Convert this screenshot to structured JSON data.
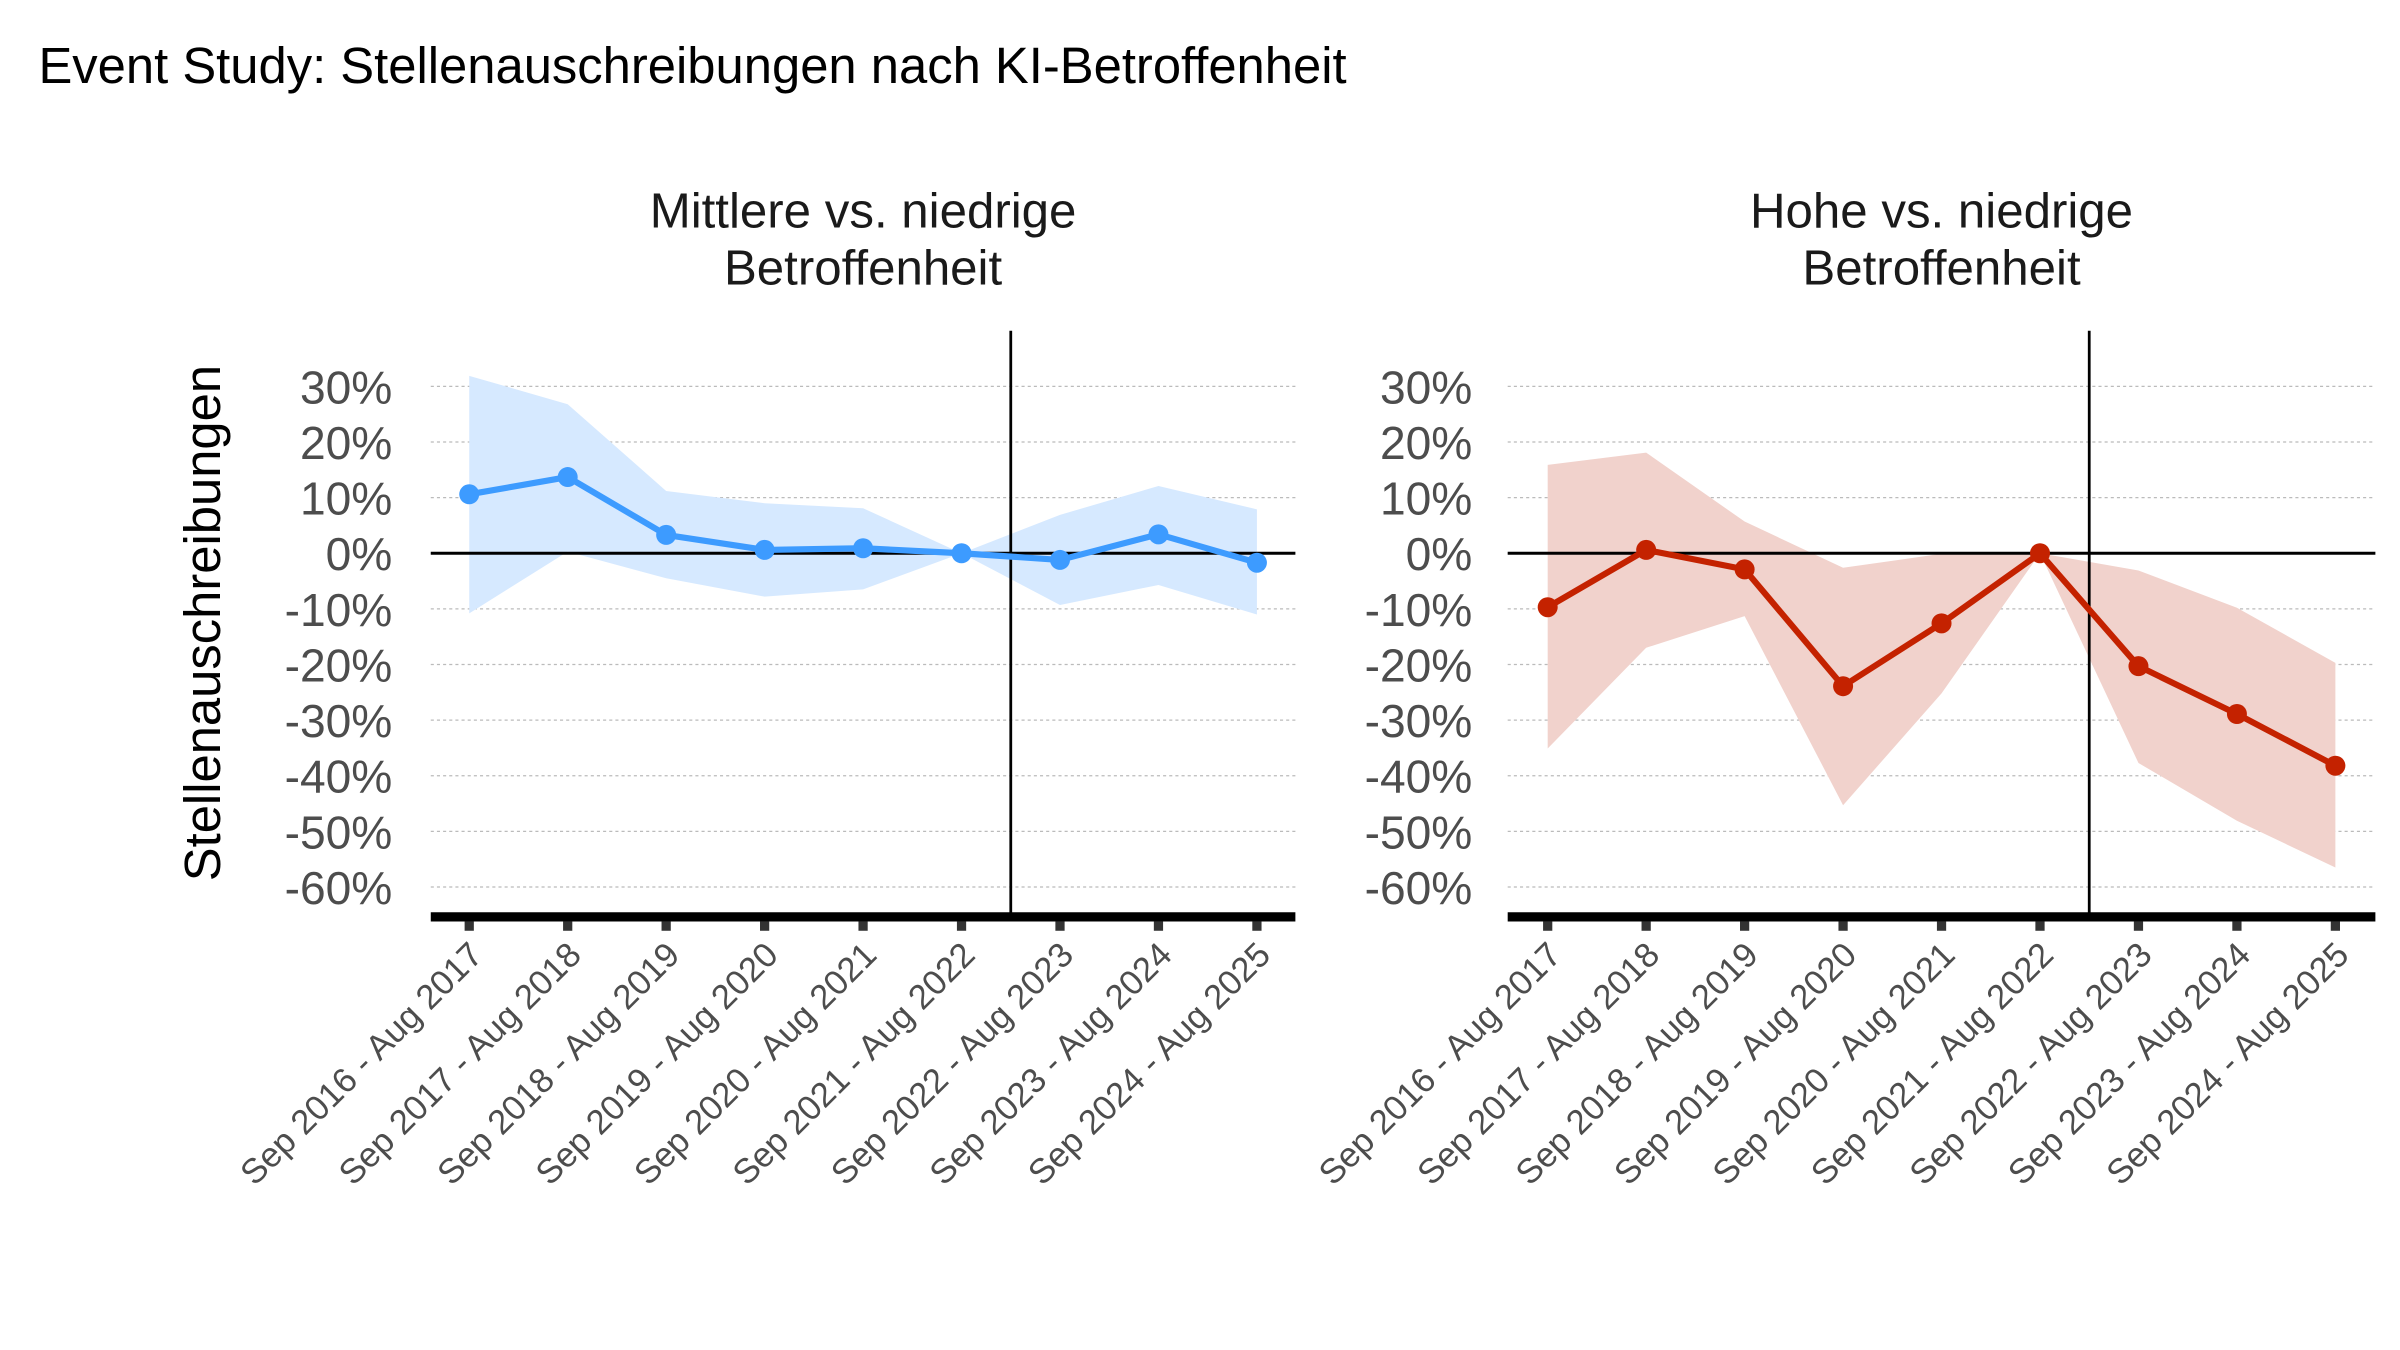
{
  "title": "Event Study: Stellenauschreibungen nach KI-Betroffenheit",
  "colors": {
    "panel1_line": "#3D9BFF",
    "panel1_ribbon": "#D6E9FF",
    "panel2_line": "#C42200",
    "panel2_ribbon": "#F1D2CC",
    "axis_text": "#4D4D4D",
    "grid": "#BBBBBB"
  },
  "chart_data": [
    {
      "type": "line",
      "title": [
        "Mittlere vs. niedrige",
        "Betroffenheit"
      ],
      "ylabel": "Stellenauschreibungen",
      "xlabel": "",
      "categories": [
        "Sep 2016 - Aug 2017",
        "Sep 2017 - Aug 2018",
        "Sep 2018 - Aug 2019",
        "Sep 2019 - Aug 2020",
        "Sep 2020 - Aug 2021",
        "Sep 2021 - Aug 2022",
        "Sep 2022 - Aug 2023",
        "Sep 2023 - Aug 2024",
        "Sep 2024 - Aug 2025"
      ],
      "values": [
        10.6,
        13.7,
        3.3,
        0.6,
        0.9,
        0.0,
        -1.2,
        3.4,
        -1.7
      ],
      "ci_upper": [
        31.9,
        26.8,
        11.2,
        9.0,
        8.1,
        0.0,
        6.9,
        12.1,
        7.9
      ],
      "ci_lower": [
        -10.8,
        0.3,
        -4.5,
        -7.8,
        -6.5,
        0.0,
        -9.3,
        -5.7,
        -11.0
      ],
      "yticks": [
        "30%",
        "20%",
        "10%",
        "0%",
        "-10%",
        "-20%",
        "-30%",
        "-40%",
        "-50%",
        "-60%"
      ],
      "ytick_values": [
        30,
        20,
        10,
        0,
        -10,
        -20,
        -30,
        -40,
        -50,
        -60
      ],
      "ylim": [
        -64,
        40
      ],
      "hline": 0,
      "vline_between": [
        "Sep 2021 - Aug 2022",
        "Sep 2022 - Aug 2023"
      ],
      "grid": "horizontal dotted"
    },
    {
      "type": "line",
      "title": [
        "Hohe vs. niedrige",
        "Betroffenheit"
      ],
      "categories": [
        "Sep 2016 - Aug 2017",
        "Sep 2017 - Aug 2018",
        "Sep 2018 - Aug 2019",
        "Sep 2019 - Aug 2020",
        "Sep 2020 - Aug 2021",
        "Sep 2021 - Aug 2022",
        "Sep 2022 - Aug 2023",
        "Sep 2023 - Aug 2024",
        "Sep 2024 - Aug 2025"
      ],
      "values": [
        -9.7,
        0.6,
        -2.9,
        -23.9,
        -12.6,
        0.0,
        -20.3,
        -28.9,
        -38.2
      ],
      "ci_upper": [
        15.9,
        18.1,
        5.7,
        -2.6,
        -0.1,
        0.0,
        -3.1,
        -9.8,
        -19.7
      ],
      "ci_lower": [
        -35.1,
        -17.0,
        -11.3,
        -45.3,
        -25.2,
        0.0,
        -37.7,
        -48.1,
        -56.5
      ],
      "yticks": [
        "30%",
        "20%",
        "10%",
        "0%",
        "-10%",
        "-20%",
        "-30%",
        "-40%",
        "-50%",
        "-60%"
      ],
      "ytick_values": [
        30,
        20,
        10,
        0,
        -10,
        -20,
        -30,
        -40,
        -50,
        -60
      ],
      "ylim": [
        -64,
        40
      ],
      "hline": 0,
      "vline_between": [
        "Sep 2021 - Aug 2022",
        "Sep 2022 - Aug 2023"
      ],
      "grid": "horizontal dotted"
    }
  ]
}
